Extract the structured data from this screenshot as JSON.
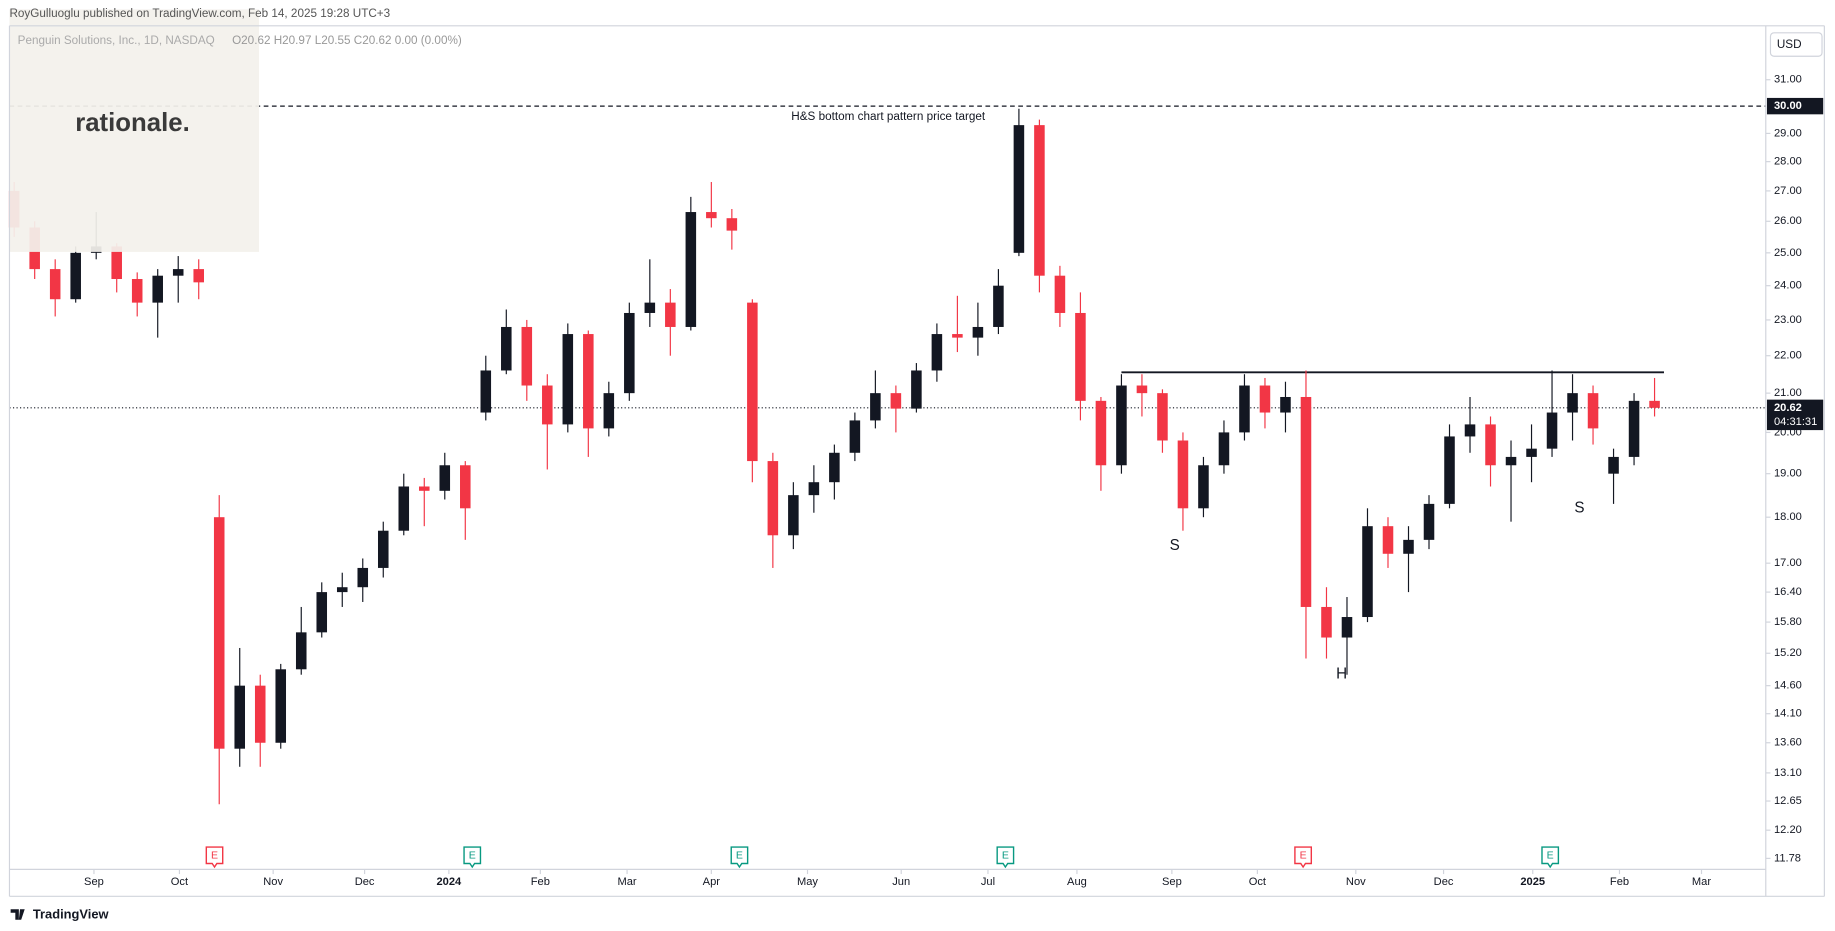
{
  "chart_data": {
    "type": "candlestick",
    "header": "RoyGulluoglu published on TradingView.com, Feb 14, 2025 19:28 UTC+3",
    "legend": {
      "symbol": "Penguin Solutions, Inc., 1D, NASDAQ",
      "ohlc": "O20.62 H20.97 L20.55 C20.62 0.00 (0.00%)"
    },
    "logo": "rationale.",
    "currency": "USD",
    "footer": "TradingView",
    "log_scale": true,
    "grid": false,
    "up_color": "#131722",
    "down_color": "#f23645",
    "ylim": [
      11.62,
      33.15
    ],
    "xlim": [
      -0.23,
      85.31
    ],
    "yticks": [
      {
        "value": 11.78,
        "label": "11.78"
      },
      {
        "value": 12.2,
        "label": "12.20"
      },
      {
        "value": 12.65,
        "label": "12.65"
      },
      {
        "value": 13.1,
        "label": "13.10"
      },
      {
        "value": 13.6,
        "label": "13.60"
      },
      {
        "value": 14.1,
        "label": "14.10"
      },
      {
        "value": 14.6,
        "label": "14.60"
      },
      {
        "value": 15.2,
        "label": "15.20"
      },
      {
        "value": 15.8,
        "label": "15.80"
      },
      {
        "value": 16.4,
        "label": "16.40"
      },
      {
        "value": 17,
        "label": "17.00"
      },
      {
        "value": 18,
        "label": "18.00"
      },
      {
        "value": 19,
        "label": "19.00"
      },
      {
        "value": 20,
        "label": "20.00"
      },
      {
        "value": 21,
        "label": "21.00"
      },
      {
        "value": 22,
        "label": "22.00"
      },
      {
        "value": 23,
        "label": "23.00"
      },
      {
        "value": 24,
        "label": "24.00"
      },
      {
        "value": 25,
        "label": "25.00"
      },
      {
        "value": 26,
        "label": "26.00"
      },
      {
        "value": 27,
        "label": "27.00"
      },
      {
        "value": 28,
        "label": "28.00"
      },
      {
        "value": 29,
        "label": "29.00"
      },
      {
        "value": 31,
        "label": "31.00"
      }
    ],
    "xticks": [
      {
        "value": 3.89,
        "label": "Sep"
      },
      {
        "value": 8.06,
        "label": "Oct"
      },
      {
        "value": 12.63,
        "label": "Nov"
      },
      {
        "value": 17.09,
        "label": "Dec"
      },
      {
        "value": 21.2,
        "label": "2024"
      },
      {
        "value": 25.66,
        "label": "Feb"
      },
      {
        "value": 29.89,
        "label": "Mar"
      },
      {
        "value": 34,
        "label": "Apr"
      },
      {
        "value": 38.69,
        "label": "May"
      },
      {
        "value": 43.26,
        "label": "Jun"
      },
      {
        "value": 47.49,
        "label": "Jul"
      },
      {
        "value": 51.83,
        "label": "Aug"
      },
      {
        "value": 56.46,
        "label": "Sep"
      },
      {
        "value": 60.63,
        "label": "Oct"
      },
      {
        "value": 65.43,
        "label": "Nov"
      },
      {
        "value": 69.71,
        "label": "Dec"
      },
      {
        "value": 74.06,
        "label": "2025"
      },
      {
        "value": 78.29,
        "label": "Feb"
      },
      {
        "value": 82.29,
        "label": "Mar"
      }
    ],
    "ohlc": [
      [
        27,
        27.3,
        25.5,
        25.8
      ],
      [
        25.8,
        26,
        24.2,
        24.5
      ],
      [
        24.5,
        24.8,
        23.1,
        23.6
      ],
      [
        23.6,
        25.2,
        23.5,
        25
      ],
      [
        25,
        26.3,
        24.8,
        25.2
      ],
      [
        25.2,
        25.3,
        23.8,
        24.2
      ],
      [
        24.2,
        24.4,
        23.1,
        23.5
      ],
      [
        23.5,
        24.5,
        22.5,
        24.3
      ],
      [
        24.3,
        24.9,
        23.5,
        24.5
      ],
      [
        24.5,
        24.8,
        23.6,
        24.1
      ],
      [
        18,
        18.5,
        12.6,
        13.5
      ],
      [
        13.5,
        15.3,
        13.2,
        14.6
      ],
      [
        14.6,
        14.8,
        13.2,
        13.6
      ],
      [
        13.6,
        15,
        13.5,
        14.9
      ],
      [
        14.9,
        16.1,
        14.8,
        15.6
      ],
      [
        15.6,
        16.6,
        15.5,
        16.4
      ],
      [
        16.4,
        16.8,
        16.1,
        16.5
      ],
      [
        16.5,
        17.1,
        16.2,
        16.9
      ],
      [
        16.9,
        17.9,
        16.7,
        17.7
      ],
      [
        17.7,
        19,
        17.6,
        18.7
      ],
      [
        18.7,
        18.9,
        17.8,
        18.6
      ],
      [
        18.6,
        19.5,
        18.4,
        19.2
      ],
      [
        19.2,
        19.3,
        17.5,
        18.2
      ],
      [
        20.5,
        22,
        20.3,
        21.6
      ],
      [
        21.6,
        23.3,
        21.5,
        22.8
      ],
      [
        22.8,
        23,
        20.8,
        21.2
      ],
      [
        21.2,
        21.5,
        19.1,
        20.2
      ],
      [
        20.2,
        22.9,
        20,
        22.6
      ],
      [
        22.6,
        22.7,
        19.4,
        20.1
      ],
      [
        20.1,
        21.3,
        19.9,
        21
      ],
      [
        21,
        23.5,
        20.8,
        23.2
      ],
      [
        23.2,
        24.8,
        22.8,
        23.5
      ],
      [
        23.5,
        23.9,
        22,
        22.8
      ],
      [
        22.8,
        26.8,
        22.7,
        26.3
      ],
      [
        26.3,
        27.3,
        25.8,
        26.1
      ],
      [
        26.1,
        26.4,
        25.1,
        25.7
      ],
      [
        23.5,
        23.6,
        18.8,
        19.3
      ],
      [
        19.3,
        19.5,
        16.9,
        17.6
      ],
      [
        17.6,
        18.8,
        17.3,
        18.5
      ],
      [
        18.5,
        19.2,
        18.1,
        18.8
      ],
      [
        18.8,
        19.7,
        18.4,
        19.5
      ],
      [
        19.5,
        20.5,
        19.3,
        20.3
      ],
      [
        20.3,
        21.6,
        20.1,
        21
      ],
      [
        21,
        21.2,
        20,
        20.6
      ],
      [
        20.6,
        21.8,
        20.5,
        21.6
      ],
      [
        21.6,
        22.9,
        21.3,
        22.6
      ],
      [
        22.6,
        23.7,
        22.1,
        22.5
      ],
      [
        22.5,
        23.5,
        22,
        22.8
      ],
      [
        22.8,
        24.5,
        22.6,
        24
      ],
      [
        25,
        29.9,
        24.9,
        29.3
      ],
      [
        29.3,
        29.5,
        23.8,
        24.3
      ],
      [
        24.3,
        24.6,
        22.8,
        23.2
      ],
      [
        23.2,
        23.8,
        20.3,
        20.8
      ],
      [
        20.8,
        20.9,
        18.6,
        19.2
      ],
      [
        19.2,
        21.5,
        19,
        21.2
      ],
      [
        21.2,
        21.5,
        20.4,
        21
      ],
      [
        21,
        21.1,
        19.5,
        19.8
      ],
      [
        19.8,
        20,
        17.7,
        18.2
      ],
      [
        18.2,
        19.4,
        18,
        19.2
      ],
      [
        19.2,
        20.3,
        19,
        20
      ],
      [
        20,
        21.5,
        19.8,
        21.2
      ],
      [
        21.2,
        21.4,
        20.1,
        20.5
      ],
      [
        20.5,
        21.3,
        20,
        20.9
      ],
      [
        20.9,
        21.6,
        15.1,
        16.1
      ],
      [
        16.1,
        16.5,
        15.1,
        15.5
      ],
      [
        15.5,
        16.3,
        14.8,
        15.9
      ],
      [
        15.9,
        18.2,
        15.8,
        17.8
      ],
      [
        17.8,
        18,
        16.9,
        17.2
      ],
      [
        17.2,
        17.8,
        16.4,
        17.5
      ],
      [
        17.5,
        18.5,
        17.3,
        18.3
      ],
      [
        18.3,
        20.2,
        18.2,
        19.9
      ],
      [
        19.9,
        20.9,
        19.5,
        20.2
      ],
      [
        20.2,
        20.4,
        18.7,
        19.2
      ],
      [
        19.2,
        19.8,
        17.9,
        19.4
      ],
      [
        19.4,
        20.2,
        18.8,
        19.6
      ],
      [
        19.6,
        21.6,
        19.4,
        20.5
      ],
      [
        20.5,
        21.5,
        19.8,
        21
      ],
      [
        21,
        21.2,
        19.7,
        20.1
      ],
      [
        19,
        19.6,
        18.3,
        19.4
      ],
      [
        19.4,
        21,
        19.2,
        20.8
      ],
      [
        20.8,
        21.4,
        20.4,
        20.62
      ]
    ],
    "target": {
      "label": "H&S bottom chart pattern price target",
      "value": 30,
      "value_label": "30.00"
    },
    "neckline": {
      "value": 21.55,
      "x": [
        54,
        80.46
      ]
    },
    "last_price": {
      "value": 20.62,
      "value_label": "20.62",
      "countdown": "04:31:31"
    },
    "pattern_labels": [
      {
        "text": "S",
        "x": 56.6,
        "y": 17.37
      },
      {
        "text": "H",
        "x": 64.74,
        "y": 14.8
      },
      {
        "text": "S",
        "x": 76.34,
        "y": 18.2
      }
    ],
    "events": [
      {
        "label": "E",
        "x": 9.77,
        "color": "#f23645"
      },
      {
        "label": "E",
        "x": 22.34,
        "color": "#089981"
      },
      {
        "label": "E",
        "x": 35.37,
        "color": "#089981"
      },
      {
        "label": "E",
        "x": 48.34,
        "color": "#089981"
      },
      {
        "label": "E",
        "x": 62.86,
        "color": "#f23645"
      },
      {
        "label": "E",
        "x": 74.91,
        "color": "#089981"
      }
    ]
  }
}
